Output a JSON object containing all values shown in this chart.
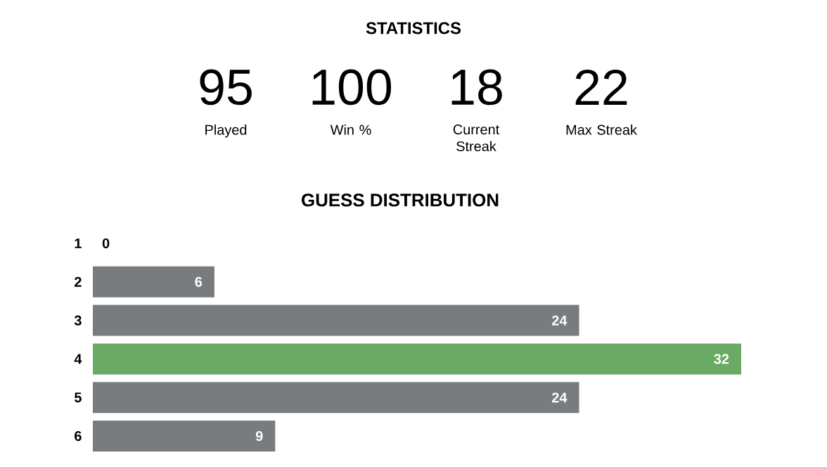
{
  "chart_data": [
    {
      "type": "other",
      "title": "STATISTICS",
      "categories": [
        "Played",
        "Win %",
        "Current Streak",
        "Max Streak"
      ],
      "values": [
        95,
        100,
        18,
        22
      ],
      "data_labels": true
    },
    {
      "type": "bar",
      "orientation": "horizontal",
      "title": "GUESS DISTRIBUTION",
      "categories": [
        "1",
        "2",
        "3",
        "4",
        "5",
        "6"
      ],
      "values": [
        0,
        6,
        24,
        32,
        24,
        9
      ],
      "colors": [
        "#787c7e",
        "#787c7e",
        "#787c7e",
        "#6aaa64",
        "#787c7e",
        "#787c7e"
      ],
      "data_labels": true
    }
  ]
}
